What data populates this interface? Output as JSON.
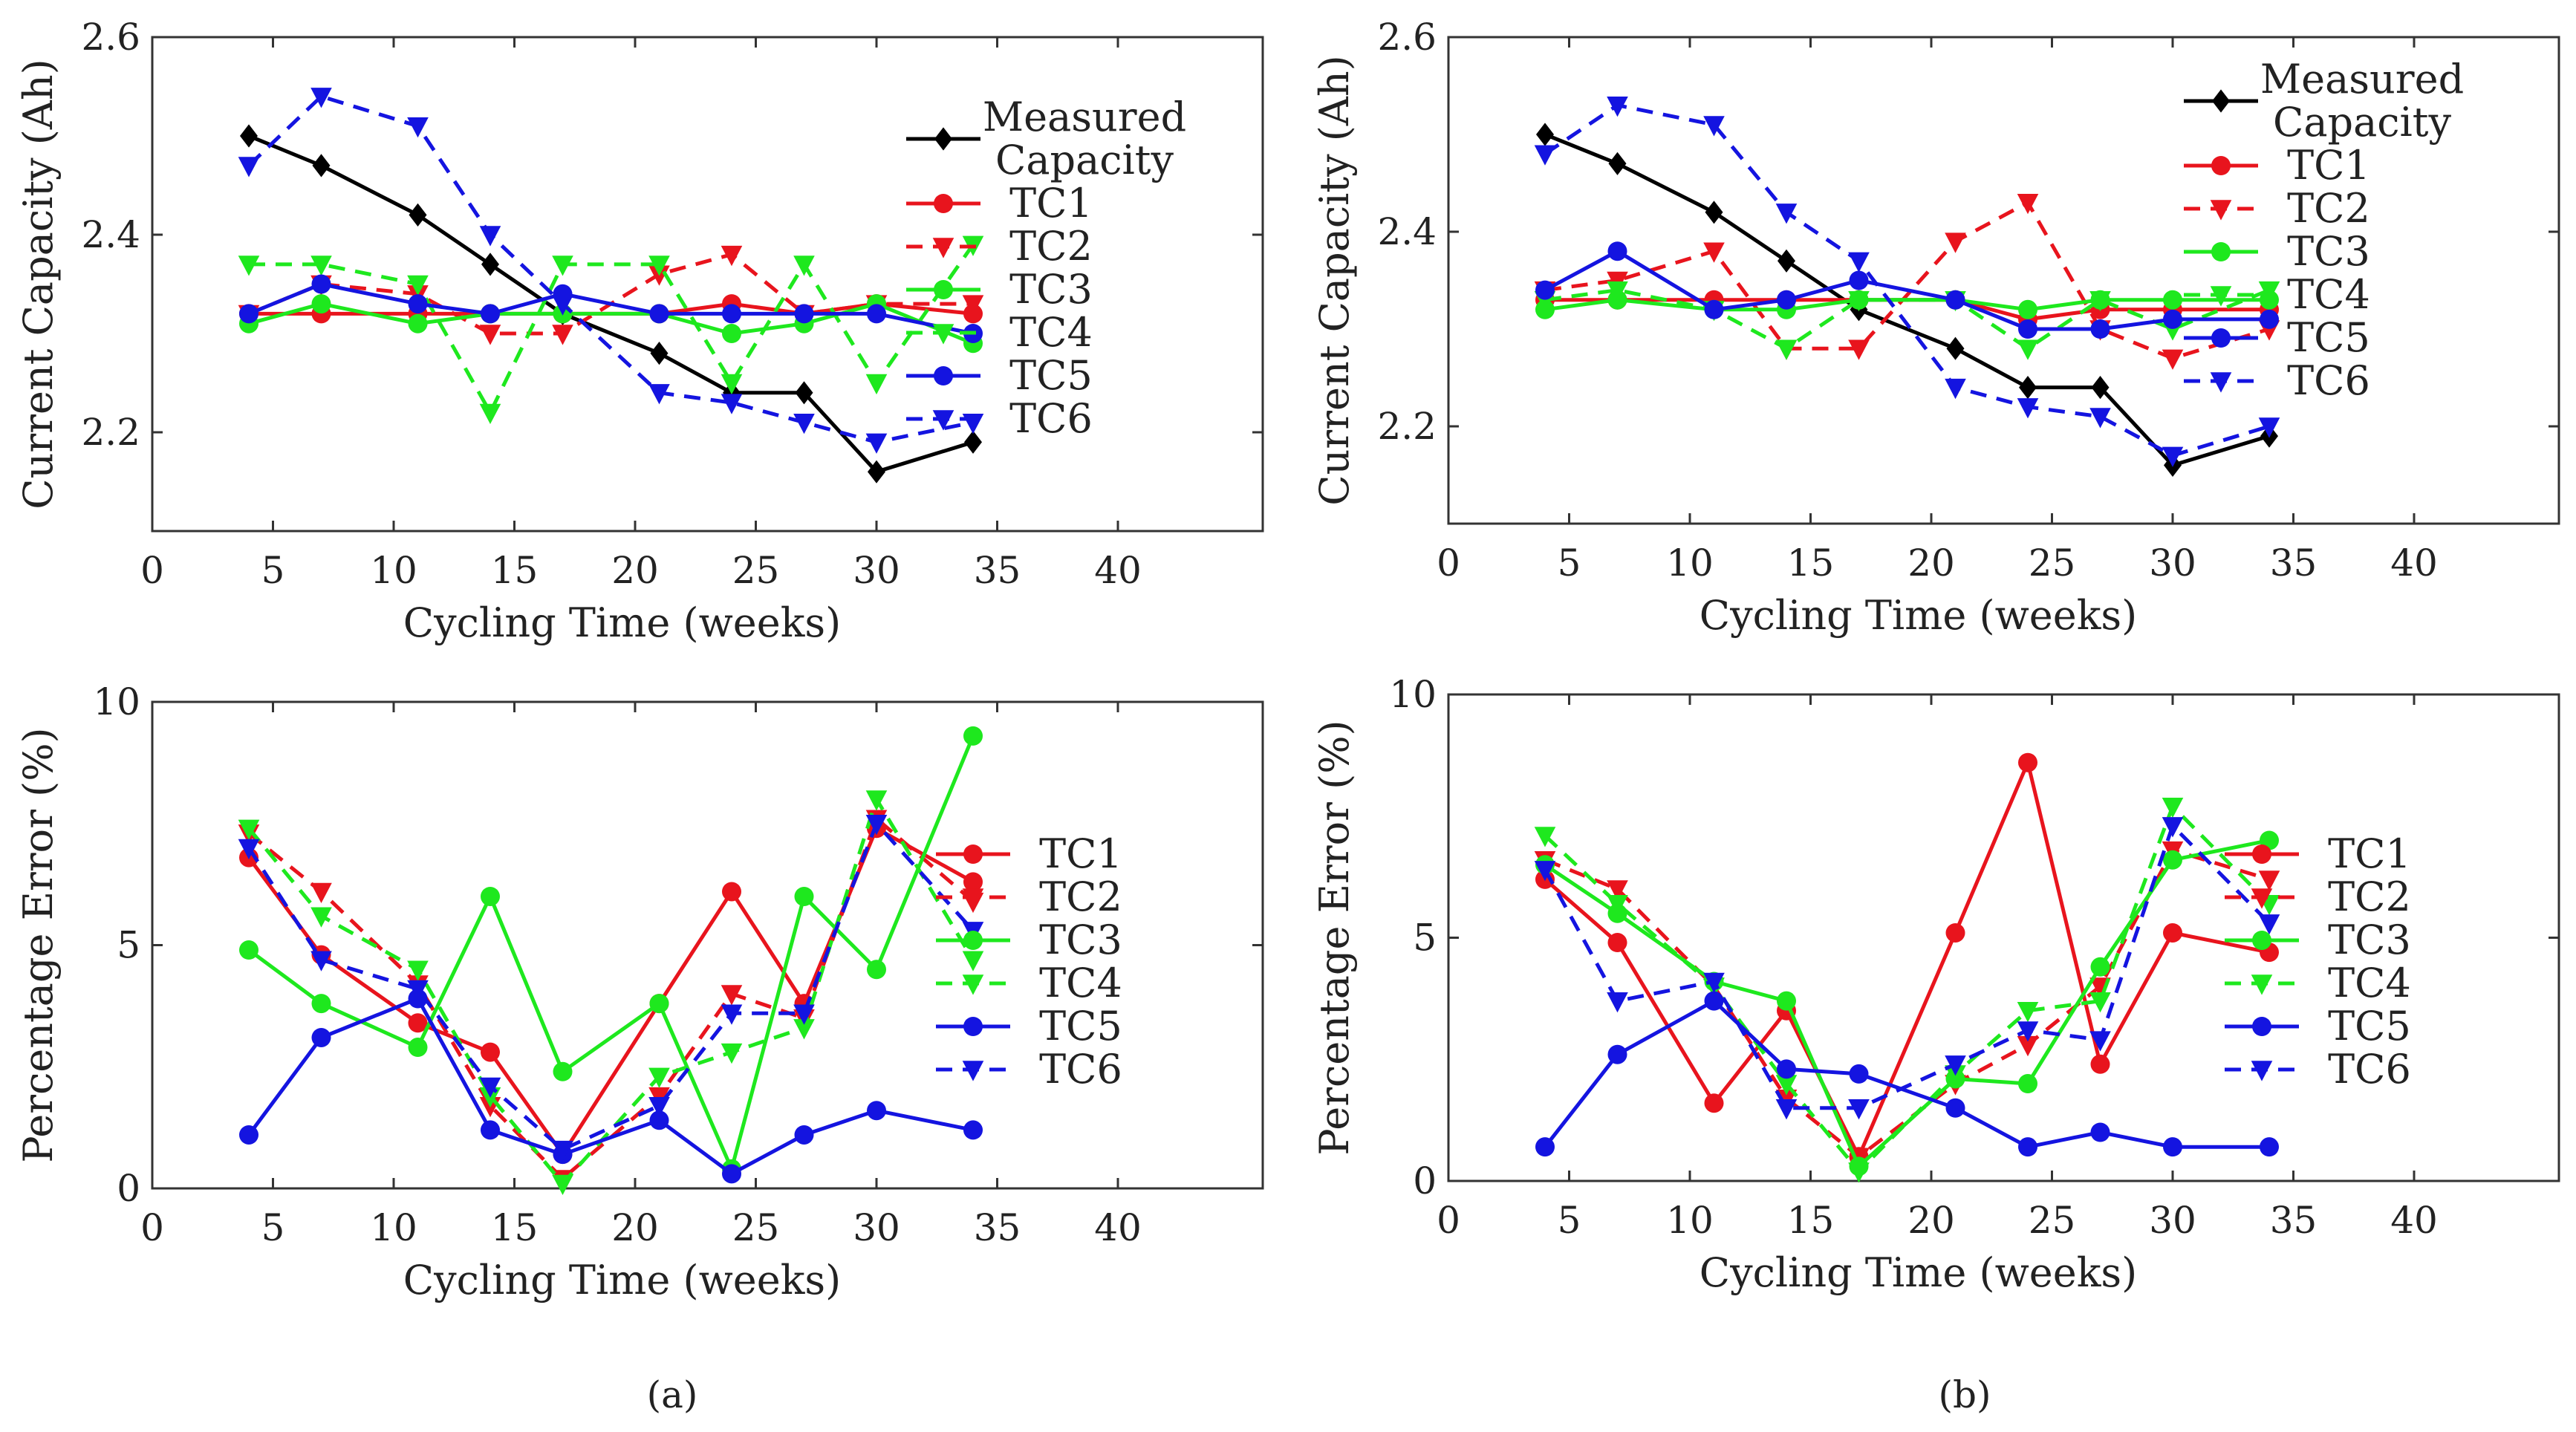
{
  "panel_labels": [
    "(a)",
    "(b)"
  ],
  "series_styles": {
    "Measured Capacity": {
      "color": "#000000",
      "dash": false,
      "marker": "diamond"
    },
    "TC1": {
      "color": "#e8141d",
      "dash": false,
      "marker": "circle"
    },
    "TC2": {
      "color": "#e8141d",
      "dash": true,
      "marker": "triangle-down"
    },
    "TC3": {
      "color": "#1ee81e",
      "dash": false,
      "marker": "circle"
    },
    "TC4": {
      "color": "#1ee81e",
      "dash": true,
      "marker": "triangle-down"
    },
    "TC5": {
      "color": "#1414e0",
      "dash": false,
      "marker": "circle"
    },
    "TC6": {
      "color": "#1414e0",
      "dash": true,
      "marker": "triangle-down"
    }
  },
  "chart_data": [
    {
      "id": "a-top",
      "type": "line",
      "xlabel": "Cycling Time (weeks)",
      "ylabel": "Current Capacity (Ah)",
      "xlim": [
        0,
        46
      ],
      "ylim": [
        2.1,
        2.6
      ],
      "xticks": [
        0,
        5,
        10,
        15,
        20,
        25,
        30,
        35,
        40
      ],
      "yticks": [
        2.2,
        2.4,
        2.6
      ],
      "x": [
        4,
        7,
        11,
        14,
        17,
        21,
        24,
        27,
        30,
        34
      ],
      "legend": [
        {
          "name": "Measured Capacity",
          "lines": [
            "Measured",
            "Capacity"
          ]
        },
        {
          "name": "TC1",
          "lines": [
            "TC1"
          ]
        },
        {
          "name": "TC2",
          "lines": [
            "TC2"
          ]
        },
        {
          "name": "TC3",
          "lines": [
            "TC3"
          ]
        },
        {
          "name": "TC4",
          "lines": [
            "TC4"
          ]
        },
        {
          "name": "TC5",
          "lines": [
            "TC5"
          ]
        },
        {
          "name": "TC6",
          "lines": [
            "TC6"
          ]
        }
      ],
      "series": [
        {
          "name": "Measured Capacity",
          "values": [
            2.5,
            2.47,
            2.42,
            2.37,
            2.32,
            2.28,
            2.24,
            2.24,
            2.16,
            2.19
          ]
        },
        {
          "name": "TC1",
          "values": [
            2.32,
            2.32,
            2.32,
            2.32,
            2.32,
            2.32,
            2.33,
            2.32,
            2.33,
            2.32
          ]
        },
        {
          "name": "TC2",
          "values": [
            2.32,
            2.35,
            2.34,
            2.3,
            2.3,
            2.36,
            2.38,
            2.32,
            2.33,
            2.33
          ]
        },
        {
          "name": "TC3",
          "values": [
            2.31,
            2.33,
            2.31,
            2.32,
            2.32,
            2.32,
            2.3,
            2.31,
            2.33,
            2.29
          ]
        },
        {
          "name": "TC4",
          "values": [
            2.37,
            2.37,
            2.35,
            2.22,
            2.37,
            2.37,
            2.25,
            2.37,
            2.25,
            2.39
          ]
        },
        {
          "name": "TC5",
          "values": [
            2.32,
            2.35,
            2.33,
            2.32,
            2.34,
            2.32,
            2.32,
            2.32,
            2.32,
            2.3
          ]
        },
        {
          "name": "TC6",
          "values": [
            2.47,
            2.54,
            2.51,
            2.4,
            2.33,
            2.24,
            2.23,
            2.21,
            2.19,
            2.21
          ]
        }
      ]
    },
    {
      "id": "b-top",
      "type": "line",
      "xlabel": "Cycling Time (weeks)",
      "ylabel": "Current Capacity (Ah)",
      "xlim": [
        0,
        46
      ],
      "ylim": [
        2.1,
        2.6
      ],
      "xticks": [
        0,
        5,
        10,
        15,
        20,
        25,
        30,
        35,
        40
      ],
      "yticks": [
        2.2,
        2.4,
        2.6
      ],
      "x": [
        4,
        7,
        11,
        14,
        17,
        21,
        24,
        27,
        30,
        34
      ],
      "legend": [
        {
          "name": "Measured Capacity",
          "lines": [
            "Measured",
            "Capacity"
          ]
        },
        {
          "name": "TC1",
          "lines": [
            "TC1"
          ]
        },
        {
          "name": "TC2",
          "lines": [
            "TC2"
          ]
        },
        {
          "name": "TC3",
          "lines": [
            "TC3"
          ]
        },
        {
          "name": "TC4",
          "lines": [
            "TC4"
          ]
        },
        {
          "name": "TC5",
          "lines": [
            "TC5"
          ]
        },
        {
          "name": "TC6",
          "lines": [
            "TC6"
          ]
        }
      ],
      "series": [
        {
          "name": "Measured Capacity",
          "values": [
            2.5,
            2.47,
            2.42,
            2.37,
            2.32,
            2.28,
            2.24,
            2.24,
            2.16,
            2.19
          ]
        },
        {
          "name": "TC1",
          "values": [
            2.33,
            2.33,
            2.33,
            2.33,
            2.33,
            2.33,
            2.31,
            2.32,
            2.32,
            2.32
          ]
        },
        {
          "name": "TC2",
          "values": [
            2.34,
            2.35,
            2.38,
            2.28,
            2.28,
            2.39,
            2.43,
            2.3,
            2.27,
            2.3
          ]
        },
        {
          "name": "TC3",
          "values": [
            2.32,
            2.33,
            2.32,
            2.32,
            2.33,
            2.33,
            2.32,
            2.33,
            2.33,
            2.33
          ]
        },
        {
          "name": "TC4",
          "values": [
            2.33,
            2.34,
            2.32,
            2.28,
            2.33,
            2.33,
            2.28,
            2.33,
            2.3,
            2.34
          ]
        },
        {
          "name": "TC5",
          "values": [
            2.34,
            2.38,
            2.32,
            2.33,
            2.35,
            2.33,
            2.3,
            2.3,
            2.31,
            2.31
          ]
        },
        {
          "name": "TC6",
          "values": [
            2.48,
            2.53,
            2.51,
            2.42,
            2.37,
            2.24,
            2.22,
            2.21,
            2.17,
            2.2
          ]
        }
      ]
    },
    {
      "id": "a-bottom",
      "type": "line",
      "xlabel": "Cycling Time (weeks)",
      "ylabel": "Percentage Error (%)",
      "xlim": [
        0,
        46
      ],
      "ylim": [
        0,
        10
      ],
      "xticks": [
        0,
        5,
        10,
        15,
        20,
        25,
        30,
        35,
        40
      ],
      "yticks": [
        0,
        5,
        10
      ],
      "x": [
        4,
        7,
        11,
        14,
        17,
        21,
        24,
        27,
        30,
        34
      ],
      "legend": [
        {
          "name": "TC1",
          "lines": [
            "TC1"
          ]
        },
        {
          "name": "TC2",
          "lines": [
            "TC2"
          ]
        },
        {
          "name": "TC3",
          "lines": [
            "TC3"
          ]
        },
        {
          "name": "TC4",
          "lines": [
            "TC4"
          ]
        },
        {
          "name": "TC5",
          "lines": [
            "TC5"
          ]
        },
        {
          "name": "TC6",
          "lines": [
            "TC6"
          ]
        }
      ],
      "series": [
        {
          "name": "TC1",
          "values": [
            6.8,
            4.8,
            3.4,
            2.8,
            0.7,
            3.8,
            6.1,
            3.8,
            7.4,
            6.3
          ]
        },
        {
          "name": "TC2",
          "values": [
            7.3,
            6.1,
            4.2,
            1.7,
            0.2,
            1.9,
            4.0,
            3.5,
            7.6,
            5.9
          ]
        },
        {
          "name": "TC3",
          "values": [
            4.9,
            3.8,
            2.9,
            6.0,
            2.4,
            3.8,
            0.4,
            6.0,
            4.5,
            9.3
          ]
        },
        {
          "name": "TC4",
          "values": [
            7.4,
            5.6,
            4.5,
            1.9,
            0.1,
            2.3,
            2.8,
            3.3,
            8.0,
            4.7
          ]
        },
        {
          "name": "TC5",
          "values": [
            1.1,
            3.1,
            3.9,
            1.2,
            0.7,
            1.4,
            0.3,
            1.1,
            1.6,
            1.2
          ]
        },
        {
          "name": "TC6",
          "values": [
            7.0,
            4.7,
            4.1,
            2.1,
            0.8,
            1.7,
            3.6,
            3.6,
            7.5,
            5.3
          ]
        }
      ]
    },
    {
      "id": "b-bottom",
      "type": "line",
      "xlabel": "Cycling Time (weeks)",
      "ylabel": "Percentage Error (%)",
      "xlim": [
        0,
        46
      ],
      "ylim": [
        0,
        10
      ],
      "xticks": [
        0,
        5,
        10,
        15,
        20,
        25,
        30,
        35,
        40
      ],
      "yticks": [
        0,
        5,
        10
      ],
      "x": [
        4,
        7,
        11,
        14,
        17,
        21,
        24,
        27,
        30,
        34
      ],
      "legend": [
        {
          "name": "TC1",
          "lines": [
            "TC1"
          ]
        },
        {
          "name": "TC2",
          "lines": [
            "TC2"
          ]
        },
        {
          "name": "TC3",
          "lines": [
            "TC3"
          ]
        },
        {
          "name": "TC4",
          "lines": [
            "TC4"
          ]
        },
        {
          "name": "TC5",
          "lines": [
            "TC5"
          ]
        },
        {
          "name": "TC6",
          "lines": [
            "TC6"
          ]
        }
      ],
      "series": [
        {
          "name": "TC1",
          "values": [
            6.2,
            4.9,
            1.6,
            3.5,
            0.5,
            5.1,
            8.6,
            2.4,
            5.1,
            4.7
          ]
        },
        {
          "name": "TC2",
          "values": [
            6.6,
            6.0,
            4.0,
            1.7,
            0.5,
            2.0,
            2.8,
            4.0,
            6.8,
            6.2
          ]
        },
        {
          "name": "TC3",
          "values": [
            6.5,
            5.5,
            4.1,
            3.7,
            0.3,
            2.1,
            2.0,
            4.4,
            6.6,
            7.0
          ]
        },
        {
          "name": "TC4",
          "values": [
            7.1,
            5.7,
            4.0,
            2.0,
            0.2,
            2.2,
            3.5,
            3.7,
            7.7,
            5.7
          ]
        },
        {
          "name": "TC5",
          "values": [
            0.7,
            2.6,
            3.7,
            2.3,
            2.2,
            1.5,
            0.7,
            1.0,
            0.7,
            0.7
          ]
        },
        {
          "name": "TC6",
          "values": [
            6.4,
            3.7,
            4.1,
            1.5,
            1.5,
            2.4,
            3.1,
            2.9,
            7.3,
            5.3
          ]
        }
      ]
    }
  ]
}
